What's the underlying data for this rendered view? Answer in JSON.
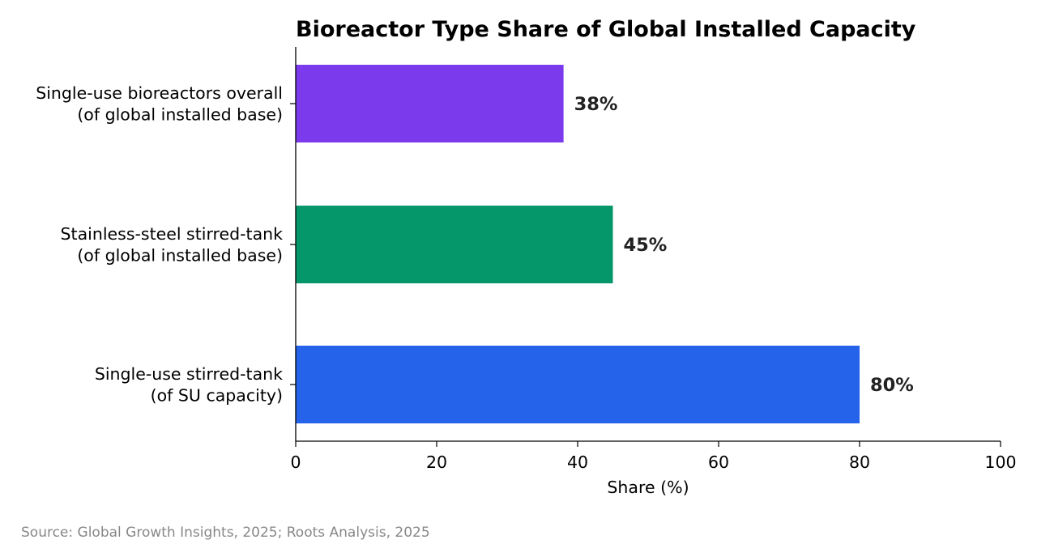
{
  "chart_data": {
    "type": "bar",
    "orientation": "horizontal",
    "title": "Bioreactor Type Share of Global Installed Capacity",
    "xlabel": "Share (%)",
    "ylabel": "",
    "xlim": [
      0,
      100
    ],
    "xticks": [
      0,
      20,
      40,
      60,
      80,
      100
    ],
    "grid": false,
    "categories": [
      [
        "Single-use bioreactors overall",
        "(of global installed base)"
      ],
      [
        "Stainless-steel stirred-tank",
        "(of global installed base)"
      ],
      [
        "Single-use stirred-tank",
        "(of SU capacity)"
      ]
    ],
    "values": [
      38,
      45,
      80
    ],
    "data_labels": [
      "38%",
      "45%",
      "80%"
    ],
    "colors": [
      "#7c3aed",
      "#059669",
      "#2563eb"
    ]
  },
  "footer": {
    "source": "Source: Global Growth Insights, 2025; Roots Analysis, 2025"
  }
}
